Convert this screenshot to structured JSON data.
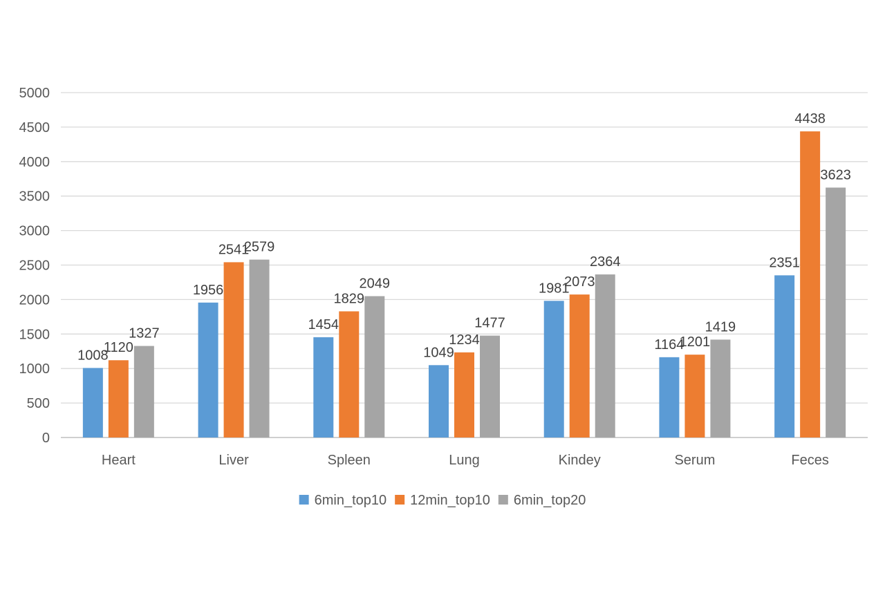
{
  "chart_data": {
    "type": "bar",
    "title": "",
    "xlabel": "",
    "ylabel": "",
    "categories": [
      "Heart",
      "Liver",
      "Spleen",
      "Lung",
      "Kindey",
      "Serum",
      "Feces"
    ],
    "series": [
      {
        "name": "6min_top10",
        "color": "#5b9bd5",
        "values": [
          1008,
          1956,
          1454,
          1049,
          1981,
          1164,
          2351
        ]
      },
      {
        "name": "12min_top10",
        "color": "#ed7d31",
        "values": [
          1120,
          2541,
          1829,
          1234,
          2073,
          1201,
          4438
        ]
      },
      {
        "name": "6min_top20",
        "color": "#a5a5a5",
        "values": [
          1327,
          2579,
          2049,
          1477,
          2364,
          1419,
          3623
        ]
      }
    ],
    "ylim": [
      0,
      5000
    ],
    "yticks": [
      0,
      500,
      1000,
      1500,
      2000,
      2500,
      3000,
      3500,
      4000,
      4500,
      5000
    ],
    "grid": true,
    "legend_position": "bottom",
    "data_labels": true
  }
}
